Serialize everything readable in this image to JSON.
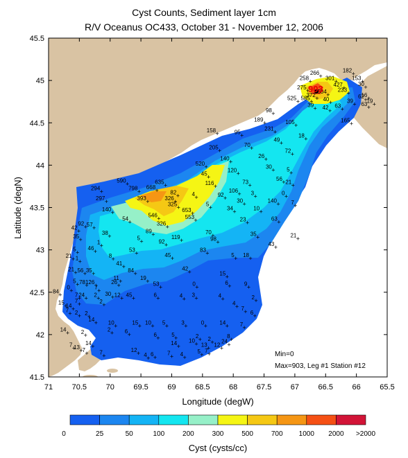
{
  "title": "Cyst Counts, Sediment layer 1cm",
  "subtitle": "R/V Oceanus OC433, October 31 - November 12, 2006",
  "x_axis": {
    "label": "Longitude (degW)",
    "ticks": [
      "71",
      "70.5",
      "70",
      "69.5",
      "69",
      "68.5",
      "68",
      "67.5",
      "67",
      "66.5",
      "66",
      "65.5"
    ]
  },
  "y_axis": {
    "label": "Latitude (degN)",
    "ticks": [
      "45.5",
      "45",
      "44.5",
      "44",
      "43.5",
      "43",
      "42.5",
      "42",
      "41.5"
    ]
  },
  "notes": {
    "min": "Min=0",
    "max": "Max=903, Leg #1 Station #12"
  },
  "max_marker": "903",
  "colorbar": {
    "label": "Cyst (cysts/cc)",
    "tick_labels": [
      "0",
      "25",
      "50",
      "100",
      "200",
      "300",
      "500",
      "700",
      "1000",
      "2000",
      ">2000"
    ],
    "colors": [
      "#1560f0",
      "#1c86f0",
      "#14b4f5",
      "#14e6f0",
      "#96f0c8",
      "#f5f514",
      "#f5c814",
      "#f59614",
      "#f55014",
      "#d21437"
    ]
  },
  "colors": {
    "land": "#d9c3a3",
    "sea_background": "#ffffff"
  },
  "stations": [
    {
      "lon": 66.57,
      "lat": 44.87,
      "label": "903"
    },
    {
      "lon": 66.58,
      "lat": 45.05,
      "label": "266"
    },
    {
      "lon": 66.75,
      "lat": 44.99,
      "label": "258"
    },
    {
      "lon": 66.33,
      "lat": 44.99,
      "label": "301"
    },
    {
      "lon": 66.05,
      "lat": 45.08,
      "label": "182"
    },
    {
      "lon": 65.9,
      "lat": 44.99,
      "label": "153"
    },
    {
      "lon": 65.85,
      "lat": 44.92,
      "label": "30"
    },
    {
      "lon": 66.2,
      "lat": 44.91,
      "label": "427"
    },
    {
      "lon": 66.79,
      "lat": 44.88,
      "label": "275"
    },
    {
      "lon": 66.64,
      "lat": 44.79,
      "label": "372"
    },
    {
      "lon": 66.46,
      "lat": 44.83,
      "label": "504"
    },
    {
      "lon": 66.13,
      "lat": 44.85,
      "label": "233"
    },
    {
      "lon": 65.8,
      "lat": 44.79,
      "label": "16"
    },
    {
      "lon": 65.85,
      "lat": 44.77,
      "label": "62"
    },
    {
      "lon": 66.95,
      "lat": 44.75,
      "label": "525"
    },
    {
      "lon": 66.73,
      "lat": 44.75,
      "label": "585"
    },
    {
      "lon": 66.42,
      "lat": 44.74,
      "label": "40"
    },
    {
      "lon": 66.03,
      "lat": 44.72,
      "label": "39"
    },
    {
      "lon": 65.71,
      "lat": 44.72,
      "label": "19"
    },
    {
      "lon": 65.8,
      "lat": 44.68,
      "label": "63"
    },
    {
      "lon": 66.67,
      "lat": 44.67,
      "label": "39"
    },
    {
      "lon": 66.43,
      "lat": 44.64,
      "label": "42"
    },
    {
      "lon": 66.23,
      "lat": 44.66,
      "label": "63"
    },
    {
      "lon": 67.35,
      "lat": 44.61,
      "label": "98"
    },
    {
      "lon": 67.49,
      "lat": 44.5,
      "label": "189"
    },
    {
      "lon": 66.98,
      "lat": 44.47,
      "label": "105"
    },
    {
      "lon": 66.08,
      "lat": 44.49,
      "label": "165"
    },
    {
      "lon": 67.32,
      "lat": 44.39,
      "label": "231"
    },
    {
      "lon": 68.26,
      "lat": 44.37,
      "label": "158"
    },
    {
      "lon": 67.86,
      "lat": 44.35,
      "label": "95"
    },
    {
      "lon": 67.22,
      "lat": 44.26,
      "label": "49"
    },
    {
      "lon": 66.82,
      "lat": 44.31,
      "label": "18"
    },
    {
      "lon": 67.7,
      "lat": 44.2,
      "label": "70"
    },
    {
      "lon": 68.22,
      "lat": 44.17,
      "label": "205"
    },
    {
      "lon": 67.04,
      "lat": 44.13,
      "label": "72"
    },
    {
      "lon": 68.04,
      "lat": 44.04,
      "label": "140"
    },
    {
      "lon": 67.47,
      "lat": 44.07,
      "label": "26"
    },
    {
      "lon": 68.44,
      "lat": 43.98,
      "label": "520"
    },
    {
      "lon": 67.35,
      "lat": 43.94,
      "label": "30"
    },
    {
      "lon": 67.92,
      "lat": 43.9,
      "label": "120"
    },
    {
      "lon": 67.06,
      "lat": 43.91,
      "label": "5"
    },
    {
      "lon": 68.4,
      "lat": 43.86,
      "label": "45"
    },
    {
      "lon": 67.18,
      "lat": 43.8,
      "label": "56"
    },
    {
      "lon": 69.72,
      "lat": 43.78,
      "label": "590"
    },
    {
      "lon": 69.1,
      "lat": 43.76,
      "label": "635"
    },
    {
      "lon": 68.29,
      "lat": 43.75,
      "label": "116"
    },
    {
      "lon": 67.73,
      "lat": 43.76,
      "label": "73"
    },
    {
      "lon": 67.03,
      "lat": 43.76,
      "label": "21"
    },
    {
      "lon": 70.14,
      "lat": 43.69,
      "label": "294"
    },
    {
      "lon": 69.53,
      "lat": 43.69,
      "label": "798"
    },
    {
      "lon": 69.24,
      "lat": 43.7,
      "label": "668"
    },
    {
      "lon": 67.9,
      "lat": 43.66,
      "label": "106"
    },
    {
      "lon": 67.64,
      "lat": 43.63,
      "label": "3"
    },
    {
      "lon": 67.14,
      "lat": 43.63,
      "label": "0"
    },
    {
      "lon": 68.9,
      "lat": 43.64,
      "label": "82"
    },
    {
      "lon": 68.6,
      "lat": 43.62,
      "label": "4"
    },
    {
      "lon": 68.13,
      "lat": 43.61,
      "label": "92"
    },
    {
      "lon": 70.06,
      "lat": 43.57,
      "label": "297"
    },
    {
      "lon": 69.39,
      "lat": 43.57,
      "label": "393"
    },
    {
      "lon": 68.94,
      "lat": 43.57,
      "label": "326"
    },
    {
      "lon": 67.82,
      "lat": 43.54,
      "label": "30"
    },
    {
      "lon": 67.27,
      "lat": 43.54,
      "label": "140"
    },
    {
      "lon": 66.99,
      "lat": 43.52,
      "label": "7"
    },
    {
      "lon": 68.89,
      "lat": 43.5,
      "label": "325"
    },
    {
      "lon": 68.37,
      "lat": 43.5,
      "label": "5"
    },
    {
      "lon": 67.98,
      "lat": 43.45,
      "label": "34"
    },
    {
      "lon": 67.55,
      "lat": 43.45,
      "label": "10"
    },
    {
      "lon": 69.96,
      "lat": 43.44,
      "label": "140"
    },
    {
      "lon": 68.66,
      "lat": 43.43,
      "label": "653"
    },
    {
      "lon": 69.21,
      "lat": 43.37,
      "label": "546"
    },
    {
      "lon": 68.61,
      "lat": 43.35,
      "label": "553"
    },
    {
      "lon": 67.77,
      "lat": 43.32,
      "label": "23"
    },
    {
      "lon": 67.26,
      "lat": 43.33,
      "label": "63"
    },
    {
      "lon": 69.68,
      "lat": 43.33,
      "label": "54"
    },
    {
      "lon": 69.07,
      "lat": 43.27,
      "label": "326"
    },
    {
      "lon": 70.4,
      "lat": 43.27,
      "label": "92"
    },
    {
      "lon": 70.26,
      "lat": 43.26,
      "label": "57"
    },
    {
      "lon": 70.51,
      "lat": 43.22,
      "label": "42"
    },
    {
      "lon": 69.3,
      "lat": 43.18,
      "label": "89"
    },
    {
      "lon": 68.33,
      "lat": 43.17,
      "label": "70"
    },
    {
      "lon": 67.6,
      "lat": 43.15,
      "label": "35"
    },
    {
      "lon": 70.01,
      "lat": 43.16,
      "label": "38"
    },
    {
      "lon": 68.84,
      "lat": 43.11,
      "label": "119"
    },
    {
      "lon": 66.95,
      "lat": 43.13,
      "label": "21"
    },
    {
      "lon": 70.48,
      "lat": 43.12,
      "label": "35"
    },
    {
      "lon": 69.49,
      "lat": 43.1,
      "label": "5"
    },
    {
      "lon": 68.25,
      "lat": 43.09,
      "label": "98"
    },
    {
      "lon": 70.14,
      "lat": 43.05,
      "label": "1"
    },
    {
      "lon": 69.09,
      "lat": 43.06,
      "label": "92"
    },
    {
      "lon": 67.31,
      "lat": 43.03,
      "label": "43"
    },
    {
      "lon": 70.24,
      "lat": 42.98,
      "label": "46"
    },
    {
      "lon": 70.53,
      "lat": 42.97,
      "label": "5"
    },
    {
      "lon": 69.57,
      "lat": 42.96,
      "label": "53"
    },
    {
      "lon": 68.42,
      "lat": 42.96,
      "label": "83"
    },
    {
      "lon": 70.6,
      "lat": 42.89,
      "label": "21"
    },
    {
      "lon": 69.95,
      "lat": 42.89,
      "label": "8"
    },
    {
      "lon": 68.99,
      "lat": 42.9,
      "label": "45"
    },
    {
      "lon": 67.96,
      "lat": 42.9,
      "label": "5"
    },
    {
      "lon": 67.72,
      "lat": 42.9,
      "label": "18"
    },
    {
      "lon": 70.49,
      "lat": 42.86,
      "label": "1"
    },
    {
      "lon": 69.78,
      "lat": 42.8,
      "label": "41"
    },
    {
      "lon": 68.71,
      "lat": 42.74,
      "label": "42"
    },
    {
      "lon": 70.56,
      "lat": 42.73,
      "label": "21"
    },
    {
      "lon": 70.41,
      "lat": 42.72,
      "label": "56"
    },
    {
      "lon": 70.27,
      "lat": 42.72,
      "label": "35"
    },
    {
      "lon": 69.59,
      "lat": 42.72,
      "label": "84"
    },
    {
      "lon": 68.1,
      "lat": 42.68,
      "label": "15"
    },
    {
      "lon": 69.83,
      "lat": 42.63,
      "label": "11"
    },
    {
      "lon": 69.39,
      "lat": 42.63,
      "label": "19"
    },
    {
      "lon": 70.53,
      "lat": 42.59,
      "label": "5"
    },
    {
      "lon": 70.38,
      "lat": 42.58,
      "label": "78"
    },
    {
      "lon": 70.23,
      "lat": 42.58,
      "label": "126"
    },
    {
      "lon": 69.86,
      "lat": 42.58,
      "label": "26"
    },
    {
      "lon": 69.18,
      "lat": 42.56,
      "label": "53"
    },
    {
      "lon": 68.59,
      "lat": 42.56,
      "label": "0"
    },
    {
      "lon": 68.06,
      "lat": 42.57,
      "label": "6"
    },
    {
      "lon": 67.75,
      "lat": 42.56,
      "label": "9"
    },
    {
      "lon": 70.63,
      "lat": 42.52,
      "label": "0"
    },
    {
      "lon": 70.18,
      "lat": 42.52,
      "label": "7"
    },
    {
      "lon": 70.81,
      "lat": 42.47,
      "label": "84"
    },
    {
      "lon": 70.5,
      "lat": 42.43,
      "label": "7"
    },
    {
      "lon": 70.39,
      "lat": 42.43,
      "label": "24"
    },
    {
      "lon": 70.19,
      "lat": 42.43,
      "label": "2"
    },
    {
      "lon": 69.96,
      "lat": 42.44,
      "label": "30"
    },
    {
      "lon": 69.81,
      "lat": 42.43,
      "label": "12"
    },
    {
      "lon": 69.62,
      "lat": 42.43,
      "label": "45"
    },
    {
      "lon": 69.22,
      "lat": 42.43,
      "label": "6"
    },
    {
      "lon": 68.8,
      "lat": 42.42,
      "label": "4"
    },
    {
      "lon": 68.6,
      "lat": 42.43,
      "label": "3"
    },
    {
      "lon": 68.17,
      "lat": 42.42,
      "label": "4"
    },
    {
      "lon": 67.63,
      "lat": 42.4,
      "label": "2"
    },
    {
      "lon": 70.72,
      "lat": 42.34,
      "label": "15"
    },
    {
      "lon": 70.5,
      "lat": 42.36,
      "label": "7"
    },
    {
      "lon": 70.1,
      "lat": 42.35,
      "label": "2"
    },
    {
      "lon": 70.6,
      "lat": 42.3,
      "label": "14"
    },
    {
      "lon": 67.94,
      "lat": 42.33,
      "label": "4"
    },
    {
      "lon": 70.65,
      "lat": 42.25,
      "label": "7"
    },
    {
      "lon": 67.8,
      "lat": 42.27,
      "label": "7"
    },
    {
      "lon": 67.65,
      "lat": 42.22,
      "label": "6"
    },
    {
      "lon": 70.5,
      "lat": 42.22,
      "label": "2"
    },
    {
      "lon": 70.34,
      "lat": 42.21,
      "label": "2"
    },
    {
      "lon": 70.23,
      "lat": 42.14,
      "label": "14"
    },
    {
      "lon": 69.91,
      "lat": 42.1,
      "label": "10"
    },
    {
      "lon": 69.52,
      "lat": 42.1,
      "label": "15"
    },
    {
      "lon": 69.31,
      "lat": 42.1,
      "label": "10"
    },
    {
      "lon": 69.08,
      "lat": 42.1,
      "label": "5"
    },
    {
      "lon": 68.77,
      "lat": 42.1,
      "label": "3"
    },
    {
      "lon": 68.45,
      "lat": 42.1,
      "label": "0"
    },
    {
      "lon": 68.1,
      "lat": 42.1,
      "label": "14"
    },
    {
      "lon": 67.82,
      "lat": 42.08,
      "label": "7"
    },
    {
      "lon": 70.69,
      "lat": 42.02,
      "label": "14"
    },
    {
      "lon": 70.4,
      "lat": 41.99,
      "label": "2"
    },
    {
      "lon": 69.97,
      "lat": 42.02,
      "label": "2"
    },
    {
      "lon": 69.69,
      "lat": 42.0,
      "label": "6"
    },
    {
      "lon": 69.22,
      "lat": 41.96,
      "label": "6"
    },
    {
      "lon": 68.93,
      "lat": 41.96,
      "label": "5"
    },
    {
      "lon": 68.54,
      "lat": 41.94,
      "label": "2"
    },
    {
      "lon": 68.03,
      "lat": 41.94,
      "label": "8"
    },
    {
      "lon": 68.6,
      "lat": 41.89,
      "label": "10"
    },
    {
      "lon": 68.34,
      "lat": 41.91,
      "label": "2"
    },
    {
      "lon": 68.07,
      "lat": 41.88,
      "label": "24"
    },
    {
      "lon": 70.59,
      "lat": 41.84,
      "label": "7"
    },
    {
      "lon": 70.28,
      "lat": 41.86,
      "label": "14"
    },
    {
      "lon": 68.89,
      "lat": 41.86,
      "label": "14"
    },
    {
      "lon": 68.4,
      "lat": 41.84,
      "label": "13"
    },
    {
      "lon": 68.19,
      "lat": 41.84,
      "label": "12"
    },
    {
      "lon": 70.47,
      "lat": 41.81,
      "label": "13"
    },
    {
      "lon": 70.38,
      "lat": 41.78,
      "label": "7"
    },
    {
      "lon": 69.54,
      "lat": 41.78,
      "label": "12"
    },
    {
      "lon": 69.27,
      "lat": 41.73,
      "label": "6"
    },
    {
      "lon": 68.79,
      "lat": 41.73,
      "label": "4"
    },
    {
      "lon": 68.51,
      "lat": 41.76,
      "label": "5"
    },
    {
      "lon": 68.39,
      "lat": 41.77,
      "label": "7"
    },
    {
      "lon": 70.1,
      "lat": 41.75,
      "label": "7"
    },
    {
      "lon": 69.38,
      "lat": 41.72,
      "label": "4"
    },
    {
      "lon": 69.0,
      "lat": 41.74,
      "label": "7"
    }
  ]
}
